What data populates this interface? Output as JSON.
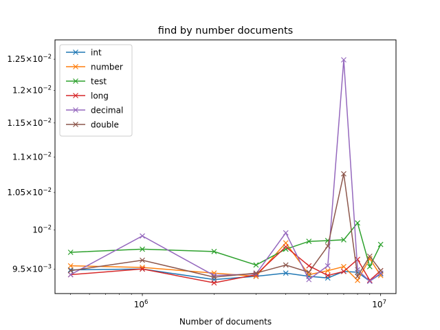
{
  "chart_data": {
    "type": "line",
    "title": "find by number documents",
    "xlabel": "Number of documents",
    "ylabel": "",
    "xscale": "log",
    "yscale": "log",
    "xlim": [
      430000,
      11600000
    ],
    "ylim": [
      0.0092,
      0.01282
    ],
    "x_ticks": [
      {
        "value": 1000000,
        "base": "10",
        "exp": "6"
      },
      {
        "value": 10000000,
        "base": "10",
        "exp": "7"
      }
    ],
    "y_ticks": [
      {
        "value": 0.0095,
        "mant": "9.5",
        "x": "×",
        "base": "10",
        "exp": "−3"
      },
      {
        "value": 0.01,
        "mant": "",
        "x": "",
        "base": "10",
        "exp": "−2"
      },
      {
        "value": 0.0105,
        "mant": "1.05",
        "x": "×",
        "base": "10",
        "exp": "−2"
      },
      {
        "value": 0.011,
        "mant": "1.1",
        "x": "×",
        "base": "10",
        "exp": "−2"
      },
      {
        "value": 0.0115,
        "mant": "1.15",
        "x": "×",
        "base": "10",
        "exp": "−2"
      },
      {
        "value": 0.012,
        "mant": "1.2",
        "x": "×",
        "base": "10",
        "exp": "−2"
      },
      {
        "value": 0.0125,
        "mant": "1.25",
        "x": "×",
        "base": "10",
        "exp": "−2"
      }
    ],
    "x": [
      500000,
      1000000,
      2000000,
      3000000,
      4000000,
      5000000,
      6000000,
      7000000,
      8000000,
      9000000,
      10000000
    ],
    "series": [
      {
        "name": "int",
        "color": "#1f77b4",
        "values": [
          0.00949,
          0.0095,
          0.00937,
          0.00941,
          0.00945,
          0.00941,
          0.00939,
          0.00947,
          0.00946,
          0.00935,
          0.00944
        ]
      },
      {
        "name": "number",
        "color": "#ff7f0e",
        "values": [
          0.00954,
          0.00952,
          0.00945,
          0.00941,
          0.00983,
          0.00943,
          0.00948,
          0.00953,
          0.00936,
          0.00963,
          0.00942
        ]
      },
      {
        "name": "test",
        "color": "#2ca02c",
        "values": [
          0.00971,
          0.00975,
          0.00972,
          0.00955,
          0.00975,
          0.00985,
          0.00986,
          0.00987,
          0.01009,
          0.00953,
          0.00981
        ]
      },
      {
        "name": "long",
        "color": "#d62728",
        "values": [
          0.00943,
          0.0095,
          0.00933,
          0.00943,
          0.00978,
          0.00954,
          0.00942,
          0.00947,
          0.00962,
          0.00936,
          0.00948
        ]
      },
      {
        "name": "decimal",
        "color": "#9467bd",
        "values": [
          0.00943,
          0.00992,
          0.00942,
          0.00944,
          0.00996,
          0.00937,
          0.00954,
          0.01249,
          0.00949,
          0.00935,
          0.00945
        ]
      },
      {
        "name": "double",
        "color": "#8c564b",
        "values": [
          0.00948,
          0.00961,
          0.0094,
          0.00945,
          0.00955,
          0.00946,
          0.00979,
          0.01076,
          0.00941,
          0.00966,
          0.00948
        ]
      }
    ],
    "legend": "upper left",
    "grid": false
  }
}
